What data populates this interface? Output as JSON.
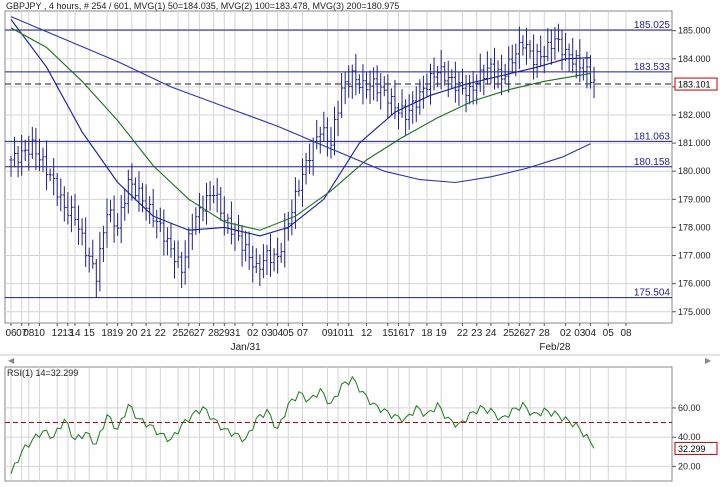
{
  "colors": {
    "price_bars": "#1c1f8c",
    "mvg1": "#101a9a",
    "mvg2": "#1f6e1f",
    "mvg3": "#2b35a8",
    "hlines": "#1c1f8c",
    "dashed_price": "#222222",
    "rsi": "#1f7a1f",
    "rsi_level": "#c00000",
    "current_value_box": "#c00000",
    "grid": "#d4d4d4"
  },
  "chart_data": [
    {
      "type": "ohlc",
      "title": "GBPJPY , 4 hours, # 254 / 601, MVG(1) 50=184.035, MVG(2) 100=183.478, MVG(3) 200=180.975",
      "ylim": [
        174.6,
        185.7
      ],
      "yticks": [
        "185.000",
        "184.000",
        "183.000",
        "182.000",
        "181.000",
        "180.000",
        "179.000",
        "178.000",
        "177.000",
        "176.000",
        "175.000"
      ],
      "xticks": [
        "06",
        "07",
        "08",
        "10",
        "12",
        "13",
        "14",
        "15",
        "18",
        "19",
        "20",
        "21",
        "22",
        "25",
        "26",
        "27",
        "28",
        "29",
        "31",
        "02",
        "03",
        "04",
        "05",
        "07",
        "09",
        "10",
        "11",
        "12",
        "15",
        "16",
        "17",
        "18",
        "19",
        "22",
        "23",
        "24",
        "25",
        "26",
        "27",
        "28",
        "02",
        "03",
        "04",
        "05",
        "08"
      ],
      "xtick_positions": [
        0,
        3,
        5,
        8,
        13,
        16,
        18,
        22,
        27,
        30,
        34,
        38,
        42,
        47,
        50,
        53,
        57,
        60,
        63,
        68,
        72,
        75,
        78,
        82,
        89,
        92,
        95,
        100,
        106,
        109,
        112,
        117,
        121,
        127,
        131,
        135,
        140,
        143,
        146,
        150,
        156,
        160,
        163,
        168,
        173
      ],
      "month_labels": [
        {
          "label": "Jan/31",
          "at": 66
        },
        {
          "label": "Feb/28",
          "at": 153
        }
      ],
      "horizontal_lines": [
        {
          "value": 185.025,
          "label": "185.025"
        },
        {
          "value": 183.533,
          "label": "183.533"
        },
        {
          "value": 181.063,
          "label": "181.063"
        },
        {
          "value": 180.158,
          "label": "180.158"
        },
        {
          "value": 175.504,
          "label": "175.504"
        }
      ],
      "dashed_price_line": 183.101,
      "current_value_label": "183.101",
      "close_anchors": [
        [
          0,
          180.4
        ],
        [
          3,
          180.6
        ],
        [
          6,
          180.9
        ],
        [
          9,
          180.3
        ],
        [
          12,
          179.6
        ],
        [
          15,
          178.7
        ],
        [
          18,
          178.4
        ],
        [
          21,
          177.2
        ],
        [
          24,
          176.3
        ],
        [
          27,
          178.6
        ],
        [
          30,
          178.0
        ],
        [
          33,
          179.6
        ],
        [
          36,
          179.2
        ],
        [
          39,
          178.6
        ],
        [
          42,
          178.0
        ],
        [
          45,
          177.2
        ],
        [
          48,
          176.5
        ],
        [
          51,
          178.1
        ],
        [
          54,
          178.8
        ],
        [
          57,
          179.3
        ],
        [
          60,
          178.3
        ],
        [
          63,
          177.8
        ],
        [
          66,
          177.2
        ],
        [
          69,
          176.5
        ],
        [
          72,
          177.0
        ],
        [
          75,
          176.9
        ],
        [
          78,
          178.2
        ],
        [
          81,
          179.5
        ],
        [
          84,
          180.6
        ],
        [
          87,
          181.5
        ],
        [
          90,
          181.0
        ],
        [
          93,
          182.9
        ],
        [
          96,
          183.4
        ],
        [
          99,
          183.0
        ],
        [
          102,
          183.1
        ],
        [
          105,
          182.8
        ],
        [
          108,
          182.3
        ],
        [
          111,
          182.0
        ],
        [
          114,
          182.5
        ],
        [
          117,
          183.1
        ],
        [
          120,
          183.6
        ],
        [
          123,
          183.3
        ],
        [
          126,
          183.0
        ],
        [
          129,
          182.8
        ],
        [
          132,
          183.4
        ],
        [
          135,
          183.7
        ],
        [
          138,
          183.3
        ],
        [
          141,
          184.0
        ],
        [
          144,
          184.6
        ],
        [
          147,
          184.0
        ],
        [
          150,
          184.2
        ],
        [
          153,
          184.7
        ],
        [
          156,
          184.2
        ],
        [
          159,
          183.9
        ],
        [
          162,
          183.5
        ],
        [
          164,
          183.2
        ]
      ],
      "series": [
        {
          "name": "MVG(1) 50",
          "points": [
            [
              0,
              185.4
            ],
            [
              10,
              183.7
            ],
            [
              20,
              181.4
            ],
            [
              30,
              179.6
            ],
            [
              40,
              178.4
            ],
            [
              50,
              177.9
            ],
            [
              60,
              178.0
            ],
            [
              70,
              177.7
            ],
            [
              78,
              178.0
            ],
            [
              88,
              179.0
            ],
            [
              98,
              181.0
            ],
            [
              108,
              182.1
            ],
            [
              118,
              182.7
            ],
            [
              128,
              183.1
            ],
            [
              138,
              183.4
            ],
            [
              148,
              183.7
            ],
            [
              156,
              184.0
            ],
            [
              163,
              184.04
            ]
          ]
        },
        {
          "name": "MVG(2) 100",
          "points": [
            [
              0,
              185.1
            ],
            [
              10,
              184.4
            ],
            [
              20,
              183.2
            ],
            [
              30,
              181.8
            ],
            [
              40,
              180.2
            ],
            [
              50,
              179.0
            ],
            [
              60,
              178.2
            ],
            [
              70,
              177.9
            ],
            [
              80,
              178.4
            ],
            [
              90,
              179.3
            ],
            [
              100,
              180.4
            ],
            [
              110,
              181.2
            ],
            [
              120,
              181.9
            ],
            [
              130,
              182.5
            ],
            [
              140,
              182.9
            ],
            [
              150,
              183.2
            ],
            [
              163,
              183.48
            ]
          ]
        },
        {
          "name": "MVG(3) 200",
          "points": [
            [
              0,
              185.5
            ],
            [
              15,
              184.7
            ],
            [
              30,
              183.9
            ],
            [
              45,
              183.0
            ],
            [
              60,
              182.3
            ],
            [
              75,
              181.6
            ],
            [
              90,
              180.8
            ],
            [
              105,
              180.0
            ],
            [
              115,
              179.7
            ],
            [
              125,
              179.6
            ],
            [
              135,
              179.8
            ],
            [
              145,
              180.1
            ],
            [
              155,
              180.5
            ],
            [
              163,
              180.98
            ]
          ]
        }
      ]
    },
    {
      "type": "line",
      "title": "RSI(1) 14=32.299",
      "ylim": [
        10,
        88
      ],
      "yticks": [
        "60.00",
        "40.00",
        "20.00"
      ],
      "level": 50,
      "current_value_label": "32.299",
      "points": [
        [
          0,
          15
        ],
        [
          3,
          30
        ],
        [
          6,
          38
        ],
        [
          9,
          44
        ],
        [
          12,
          40
        ],
        [
          15,
          52
        ],
        [
          18,
          38
        ],
        [
          21,
          43
        ],
        [
          24,
          35
        ],
        [
          27,
          55
        ],
        [
          30,
          45
        ],
        [
          33,
          62
        ],
        [
          36,
          52
        ],
        [
          39,
          48
        ],
        [
          42,
          42
        ],
        [
          45,
          38
        ],
        [
          48,
          48
        ],
        [
          51,
          55
        ],
        [
          54,
          60
        ],
        [
          57,
          52
        ],
        [
          60,
          45
        ],
        [
          63,
          42
        ],
        [
          66,
          38
        ],
        [
          69,
          52
        ],
        [
          72,
          58
        ],
        [
          75,
          45
        ],
        [
          78,
          62
        ],
        [
          81,
          70
        ],
        [
          84,
          65
        ],
        [
          87,
          72
        ],
        [
          90,
          62
        ],
        [
          93,
          75
        ],
        [
          96,
          80
        ],
        [
          99,
          70
        ],
        [
          102,
          62
        ],
        [
          105,
          58
        ],
        [
          108,
          54
        ],
        [
          111,
          52
        ],
        [
          114,
          60
        ],
        [
          117,
          55
        ],
        [
          120,
          62
        ],
        [
          123,
          52
        ],
        [
          126,
          48
        ],
        [
          129,
          55
        ],
        [
          132,
          60
        ],
        [
          135,
          58
        ],
        [
          138,
          52
        ],
        [
          141,
          58
        ],
        [
          144,
          62
        ],
        [
          147,
          55
        ],
        [
          150,
          58
        ],
        [
          153,
          56
        ],
        [
          156,
          52
        ],
        [
          159,
          48
        ],
        [
          162,
          40
        ],
        [
          164,
          32.3
        ]
      ]
    }
  ]
}
